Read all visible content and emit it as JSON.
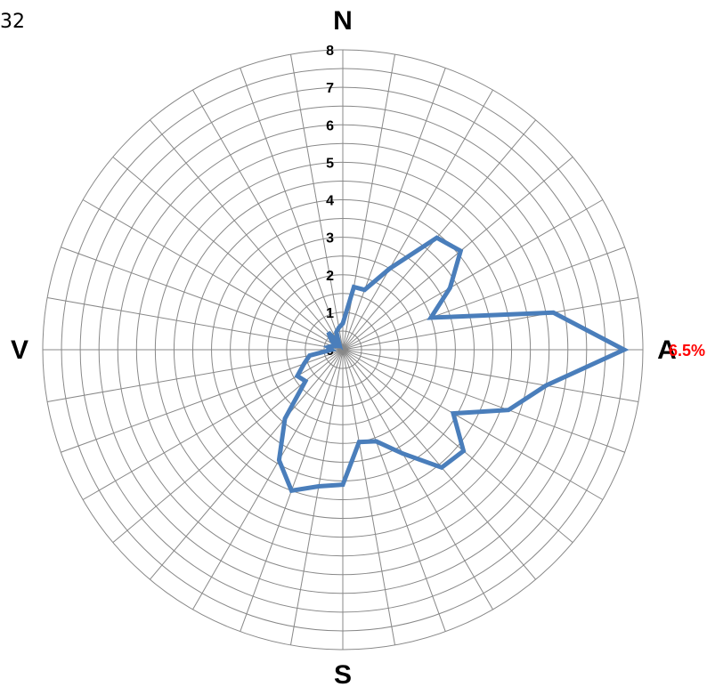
{
  "corner_text": "32",
  "chart_data": {
    "type": "radar",
    "directions": {
      "north": "N",
      "east": "A",
      "south": "S",
      "west": "V"
    },
    "ring_labels": [
      "0",
      "1",
      "2",
      "3",
      "4",
      "5",
      "6",
      "7",
      "8"
    ],
    "rmax": 8,
    "spokes": 36,
    "angles_deg": [
      0,
      10,
      20,
      30,
      40,
      50,
      60,
      70,
      80,
      90,
      100,
      110,
      120,
      130,
      140,
      150,
      160,
      170,
      180,
      190,
      200,
      210,
      220,
      230,
      240,
      250,
      260,
      270,
      280,
      290,
      300,
      310,
      320,
      330,
      340,
      350
    ],
    "values": [
      0.7,
      1.7,
      1.7,
      2.5,
      3.9,
      4.1,
      3.3,
      2.5,
      5.7,
      7.5,
      5.5,
      4.7,
      3.4,
      4.2,
      4.1,
      3.2,
      2.6,
      2.5,
      3.6,
      3.7,
      4.0,
      3.4,
      2.4,
      1.3,
      1.4,
      1.1,
      0.9,
      0.3,
      0.4,
      0.3,
      0.2,
      0.4,
      0.6,
      0.2,
      0.5,
      0.6
    ],
    "annotation": {
      "text": "6.5%",
      "color": "#ff0000"
    },
    "line_color": "#4a7ebb",
    "grid_color": "#888888",
    "grid": true
  }
}
